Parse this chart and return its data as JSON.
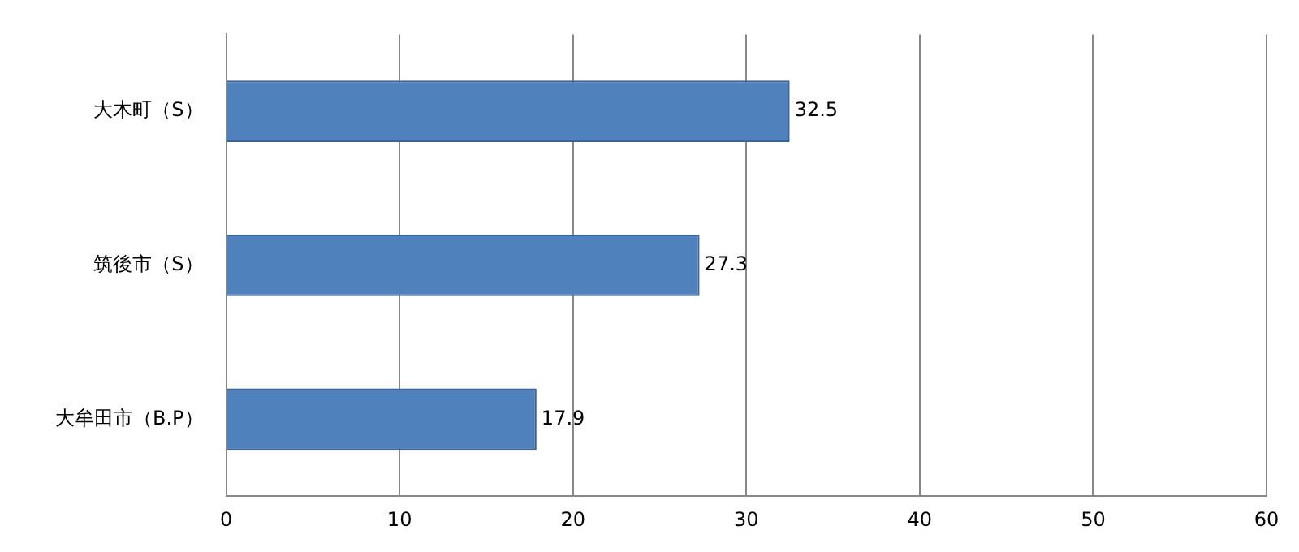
{
  "chart_data": {
    "type": "bar",
    "orientation": "horizontal",
    "categories": [
      "大木町（S）",
      "筑後市（S）",
      "大牟田市（B.P）"
    ],
    "values": [
      32.5,
      27.3,
      17.9
    ],
    "color": "#4f81bd",
    "xlim": [
      0,
      60
    ],
    "xticks": [
      0,
      10,
      20,
      30,
      40,
      50,
      60
    ],
    "grid": "x",
    "data_labels": true,
    "legend": false
  }
}
